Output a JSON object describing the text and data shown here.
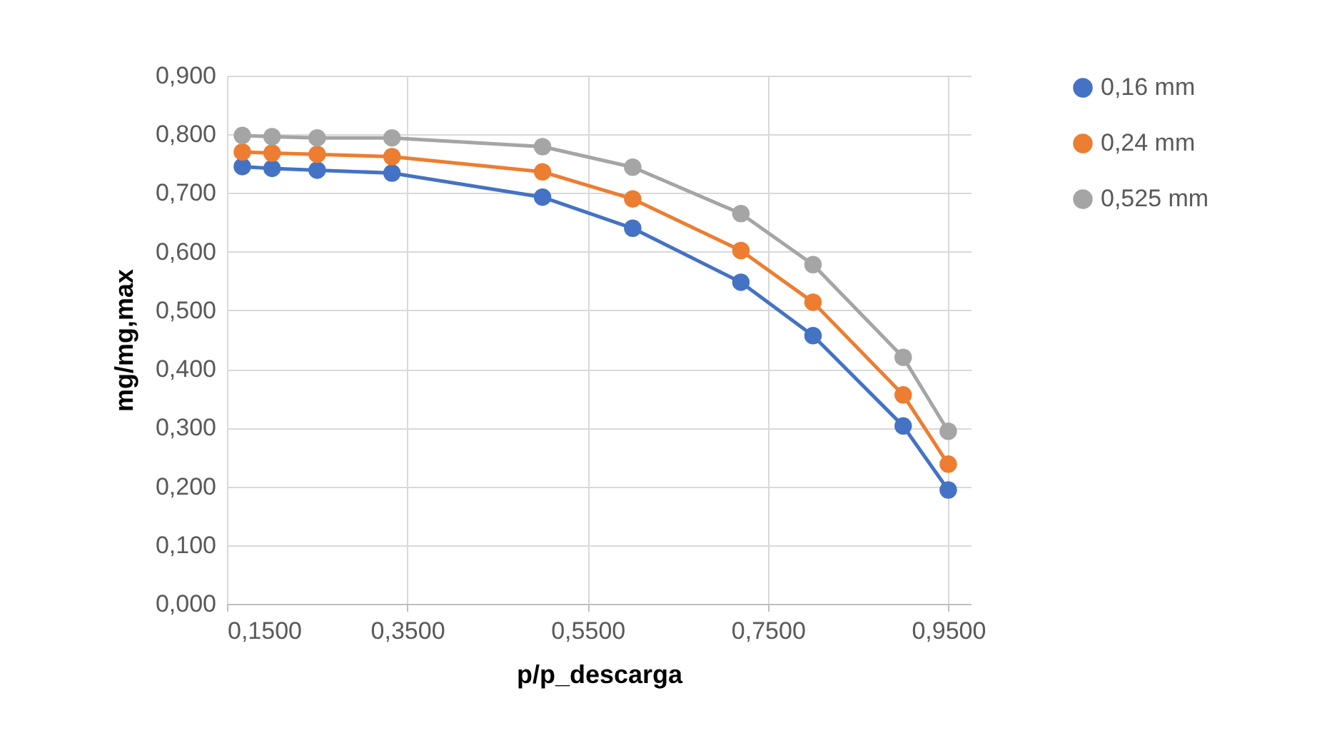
{
  "chart_data": {
    "type": "line",
    "xlabel": "p/p_descarga",
    "ylabel": "mg/mg,max",
    "x": [
      0.167,
      0.2,
      0.25,
      0.333,
      0.5,
      0.6,
      0.72,
      0.8,
      0.9,
      0.95
    ],
    "series": [
      {
        "name": "0,16 mm",
        "color": "#4472c4",
        "values": [
          0.745,
          0.742,
          0.739,
          0.734,
          0.693,
          0.64,
          0.548,
          0.457,
          0.303,
          0.194
        ]
      },
      {
        "name": "0,24 mm",
        "color": "#ed7d31",
        "values": [
          0.77,
          0.768,
          0.766,
          0.762,
          0.736,
          0.69,
          0.602,
          0.514,
          0.356,
          0.238
        ]
      },
      {
        "name": "0,525 mm",
        "color": "#a5a5a5",
        "values": [
          0.798,
          0.796,
          0.794,
          0.794,
          0.779,
          0.744,
          0.665,
          0.578,
          0.42,
          0.294
        ]
      }
    ],
    "xlim": [
      0.15,
      0.975
    ],
    "xticks": [
      {
        "value": 0.15,
        "label": "0,1500"
      },
      {
        "value": 0.35,
        "label": "0,3500"
      },
      {
        "value": 0.55,
        "label": "0,5500"
      },
      {
        "value": 0.75,
        "label": "0,7500"
      },
      {
        "value": 0.95,
        "label": "0,9500"
      }
    ],
    "ylim": [
      0,
      0.9
    ],
    "yticks": [
      {
        "value": 0,
        "label": "0,000"
      },
      {
        "value": 0.1,
        "label": "0,100"
      },
      {
        "value": 0.2,
        "label": "0,200"
      },
      {
        "value": 0.3,
        "label": "0,300"
      },
      {
        "value": 0.4,
        "label": "0,400"
      },
      {
        "value": 0.5,
        "label": "0,500"
      },
      {
        "value": 0.6,
        "label": "0,600"
      },
      {
        "value": 0.7,
        "label": "0,700"
      },
      {
        "value": 0.8,
        "label": "0,800"
      },
      {
        "value": 0.9,
        "label": "0,900"
      }
    ],
    "grid": true,
    "legend": "right",
    "marker": "circle",
    "line_style": "solid"
  }
}
